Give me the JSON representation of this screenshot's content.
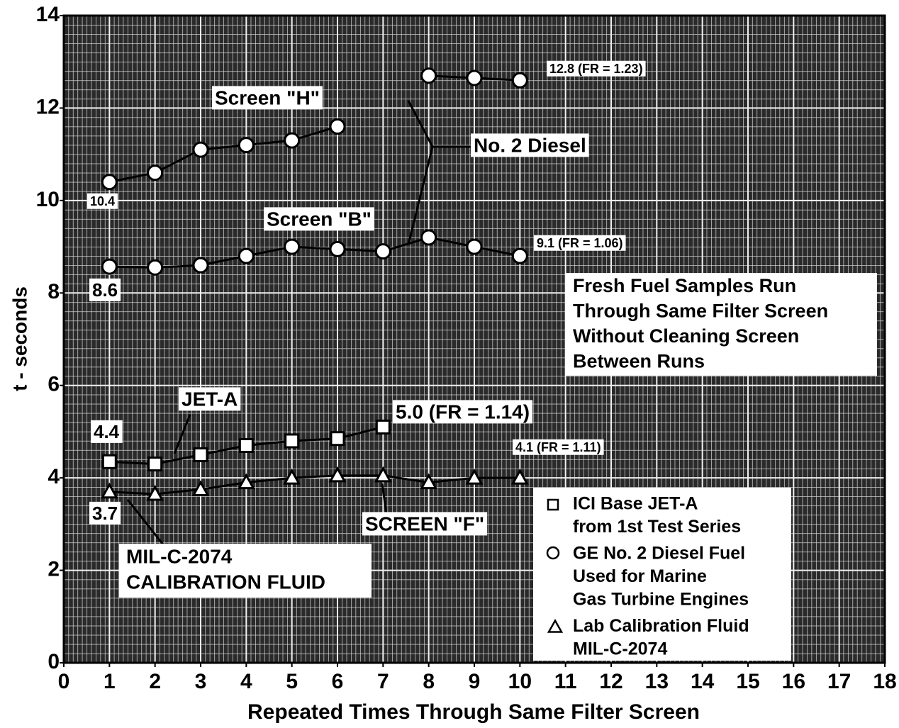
{
  "chart_data": {
    "type": "line",
    "xlabel": "Repeated Times Through Same Filter Screen",
    "ylabel": "t - seconds",
    "xlim": [
      0,
      18
    ],
    "ylim": [
      0,
      14
    ],
    "xticks": [
      0,
      1,
      2,
      3,
      4,
      5,
      6,
      7,
      8,
      9,
      10,
      11,
      12,
      13,
      14,
      15,
      16,
      17,
      18
    ],
    "yticks": [
      0,
      2,
      4,
      6,
      8,
      10,
      12,
      14
    ],
    "grid": true,
    "series": [
      {
        "name": [
          "ICI Base  JET-A",
          "from 1st Test Series"
        ],
        "marker": "square",
        "color": "#000000",
        "x": [
          1,
          2,
          3,
          4,
          5,
          6,
          7
        ],
        "values": [
          4.35,
          4.3,
          4.5,
          4.7,
          4.8,
          4.85,
          5.1
        ]
      },
      {
        "name": [
          "GE No. 2 Diesel Fuel",
          "Used for Marine",
          "Gas Turbine Engines"
        ],
        "marker": "circle",
        "color": "#000000",
        "x": [
          1,
          2,
          3,
          4,
          5,
          6,
          7,
          8,
          9,
          10
        ],
        "values": [
          10.4,
          10.6,
          11.1,
          11.2,
          11.3,
          11.6,
          null,
          12.7,
          12.65,
          12.6
        ]
      },
      {
        "name": [
          "Lab Calibration Fluid",
          "MIL-C-2074"
        ],
        "marker": "triangle",
        "color": "#000000",
        "x": [
          1,
          2,
          3,
          4,
          5,
          6,
          7,
          8,
          9,
          10
        ],
        "values": [
          3.7,
          3.65,
          3.75,
          3.9,
          4.0,
          4.05,
          4.05,
          3.9,
          4.0,
          4.0
        ]
      },
      {
        "name": [
          "GE No. 2 Diesel Fuel",
          "Screen B"
        ],
        "marker": "circle",
        "color": "#000000",
        "legend": false,
        "x": [
          1,
          2,
          3,
          4,
          5,
          6,
          7,
          8,
          9,
          10
        ],
        "values": [
          8.57,
          8.55,
          8.6,
          8.8,
          9.0,
          8.95,
          8.9,
          9.2,
          9.0,
          8.8
        ]
      }
    ],
    "annotations": [
      "Screen \"H\"",
      "No. 2 Diesel",
      "Screen \"B\"",
      "10.4",
      "8.6",
      "12.8 (FR = 1.23)",
      "9.1 (FR = 1.06)",
      "JET-A",
      "4.4",
      "5.0 (FR = 1.14)",
      "4.1 (FR = 1.11)",
      "3.7",
      "SCREEN \"F\""
    ],
    "note": [
      "Fresh Fuel Samples Run",
      "Through Same Filter Screen",
      "Without Cleaning Screen",
      "Between Runs"
    ],
    "calibration_label": [
      "MIL-C-2074",
      "CALIBRATION FLUID"
    ]
  }
}
